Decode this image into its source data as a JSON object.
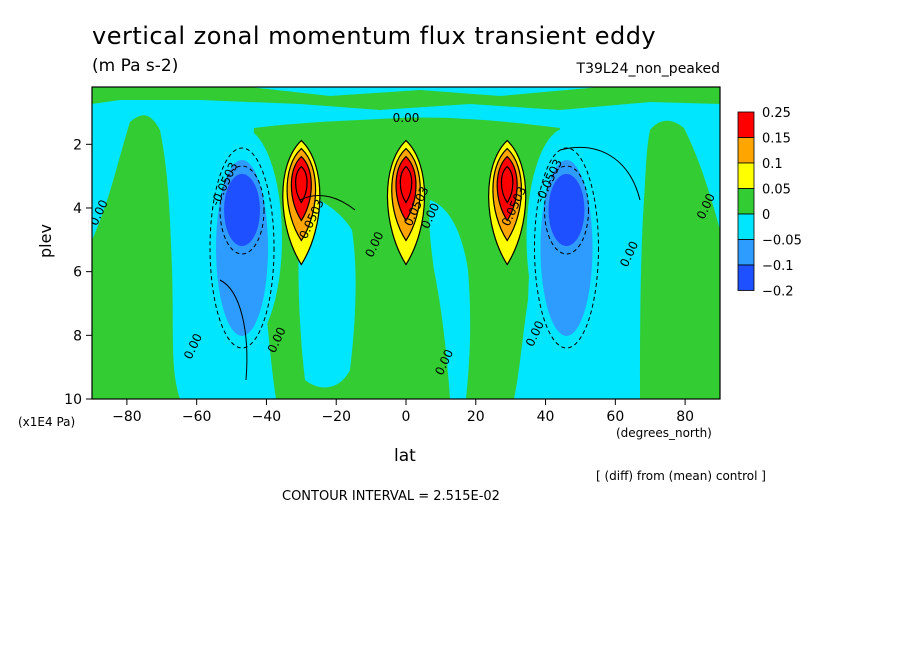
{
  "chart_data": {
    "type": "heatmap",
    "title": "vertical zonal momentum flux transient eddy",
    "units": "(m Pa s-2)",
    "run_label": "T39L24_non_peaked",
    "xlabel": "lat",
    "x_units": "(degrees_north)",
    "ylabel": "plev",
    "y_units": "(x1E4 Pa)",
    "xlim": [
      -90,
      90
    ],
    "ylim": [
      10,
      0.2
    ],
    "x_ticks": [
      -80,
      -60,
      -40,
      -20,
      0,
      20,
      40,
      60,
      80
    ],
    "y_ticks": [
      2,
      4,
      6,
      8,
      10
    ],
    "levels": [
      -0.2,
      -0.1,
      -0.05,
      0,
      0.05,
      0.1,
      0.15,
      0.25
    ],
    "legend_labels": [
      "0.25",
      "0.15",
      "0.1",
      "0.05",
      "0",
      "−0.05",
      "−0.1",
      "−0.2"
    ],
    "legend_placement": "right",
    "colors": {
      "level_-0.2": "#1f50ff",
      "level_-0.1": "#2e9bff",
      "level_-0.05": "#00e6ff",
      "level_0": "#33cc33",
      "level_0.05": "#ffff00",
      "level_0.1": "#ffa500",
      "level_0.15": "#ff0000"
    },
    "features": [
      {
        "lat": -47,
        "plev": 4.0,
        "value": -0.15,
        "sign": "negative"
      },
      {
        "lat": -30,
        "plev": 3.2,
        "value": 0.2,
        "sign": "positive"
      },
      {
        "lat": 0,
        "plev": 3.2,
        "value": 0.2,
        "sign": "positive"
      },
      {
        "lat": 29,
        "plev": 3.2,
        "value": 0.2,
        "sign": "positive"
      },
      {
        "lat": 46,
        "plev": 4.0,
        "value": -0.15,
        "sign": "negative"
      }
    ],
    "contour_labels": [
      {
        "text": "0.00",
        "lat": 0,
        "plev": 1.3
      },
      {
        "text": "0.00",
        "lat": -87,
        "plev": 4.2
      },
      {
        "text": "-0.0503",
        "lat": -51,
        "plev": 3.3
      },
      {
        "text": "0.0503",
        "lat": -26,
        "plev": 4.4
      },
      {
        "text": "0.0503",
        "lat": 4,
        "plev": 4.0
      },
      {
        "text": "0.0503",
        "lat": 32,
        "plev": 4.0
      },
      {
        "text": "-0.0503",
        "lat": 42,
        "plev": 3.2
      },
      {
        "text": "0.00",
        "lat": -8,
        "plev": 5.2
      },
      {
        "text": "0.00",
        "lat": 8,
        "plev": 4.3
      },
      {
        "text": "0.00",
        "lat": 65,
        "plev": 5.5
      },
      {
        "text": "0.00",
        "lat": 87,
        "plev": 4.0
      },
      {
        "text": "0.00",
        "lat": -60,
        "plev": 8.4
      },
      {
        "text": "0.00",
        "lat": -36,
        "plev": 8.2
      },
      {
        "text": "0.00",
        "lat": 12,
        "plev": 8.9
      },
      {
        "text": "0.00",
        "lat": 38,
        "plev": 8.0
      }
    ],
    "annotation": "[ (diff) from (mean) control ]",
    "contour_interval": "CONTOUR INTERVAL = 2.515E-02"
  }
}
